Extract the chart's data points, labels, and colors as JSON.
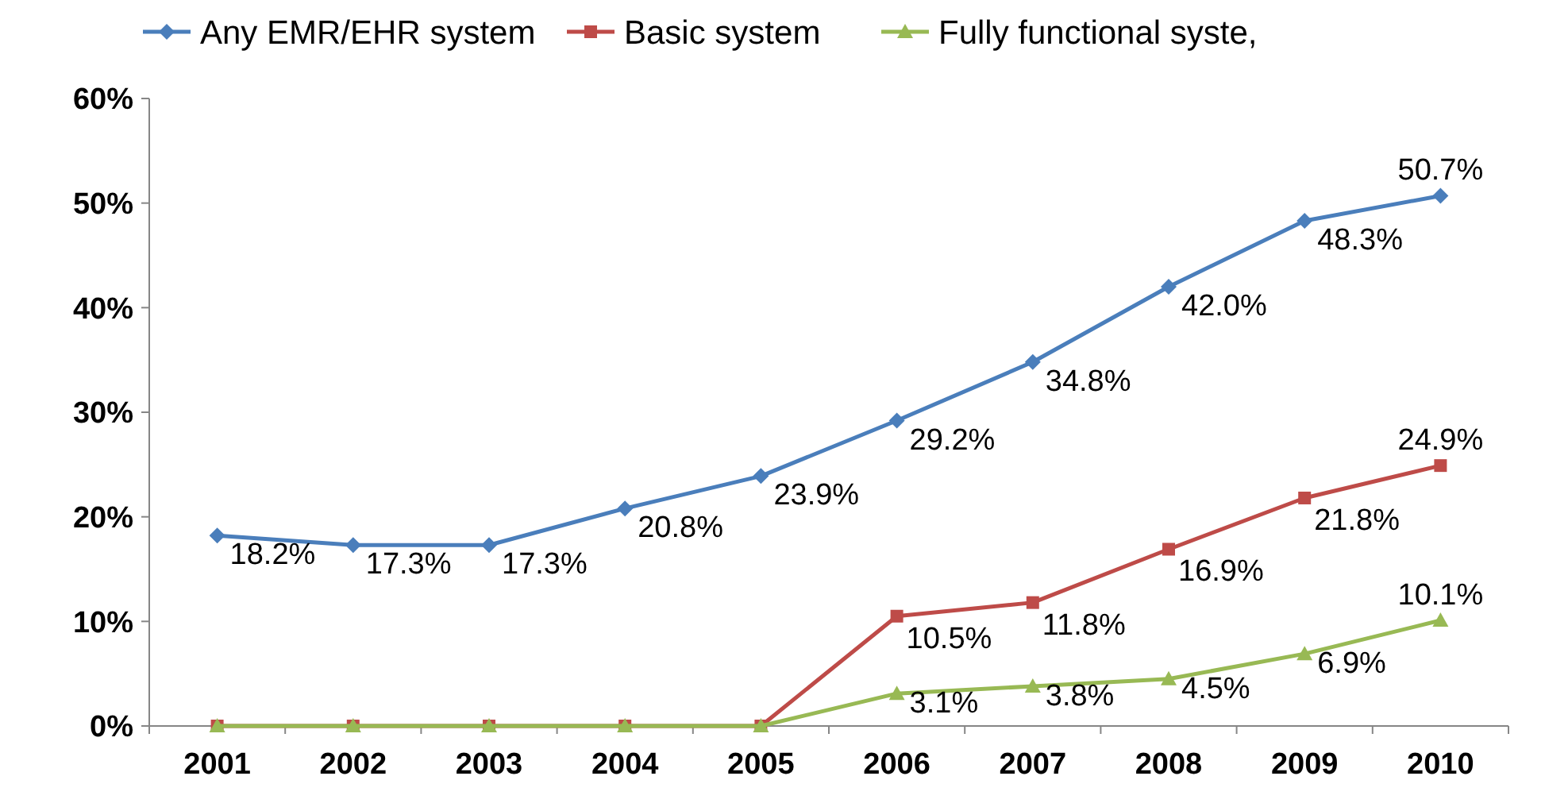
{
  "chart_data": {
    "type": "line",
    "categories": [
      "2001",
      "2002",
      "2003",
      "2004",
      "2005",
      "2006",
      "2007",
      "2008",
      "2009",
      "2010"
    ],
    "series": [
      {
        "name": "Any EMR/EHR system",
        "color": "#4a7ebb",
        "marker": "diamond",
        "values": [
          18.2,
          17.3,
          17.3,
          20.8,
          23.9,
          29.2,
          34.8,
          42.0,
          48.3,
          50.7
        ],
        "value_labels": [
          "18.2%",
          "17.3%",
          "17.3%",
          "20.8%",
          "23.9%",
          "29.2%",
          "34.8%",
          "42.0%",
          "48.3%",
          "50.7%"
        ]
      },
      {
        "name": "Basic system",
        "color": "#be4b48",
        "marker": "square",
        "values": [
          0,
          0,
          0,
          0,
          0,
          10.5,
          11.8,
          16.9,
          21.8,
          24.9
        ],
        "value_labels": [
          null,
          null,
          null,
          null,
          null,
          "10.5%",
          "11.8%",
          "16.9%",
          "21.8%",
          "24.9%"
        ]
      },
      {
        "name": "Fully functional syste,",
        "color": "#98b954",
        "marker": "triangle",
        "values": [
          0,
          0,
          0,
          0,
          0,
          3.1,
          3.8,
          4.5,
          6.9,
          10.1
        ],
        "value_labels": [
          null,
          null,
          null,
          null,
          null,
          "3.1%",
          "3.8%",
          "4.5%",
          "6.9%",
          "10.1%"
        ]
      }
    ],
    "ylim": [
      0,
      60
    ],
    "yticks": [
      {
        "value": 0,
        "label": "0%"
      },
      {
        "value": 10,
        "label": "10%"
      },
      {
        "value": 20,
        "label": "20%"
      },
      {
        "value": 30,
        "label": "30%"
      },
      {
        "value": 40,
        "label": "40%"
      },
      {
        "value": 50,
        "label": "50%"
      },
      {
        "value": 60,
        "label": "60%"
      }
    ],
    "grid": false,
    "legend": "top",
    "line_style": "solid"
  }
}
